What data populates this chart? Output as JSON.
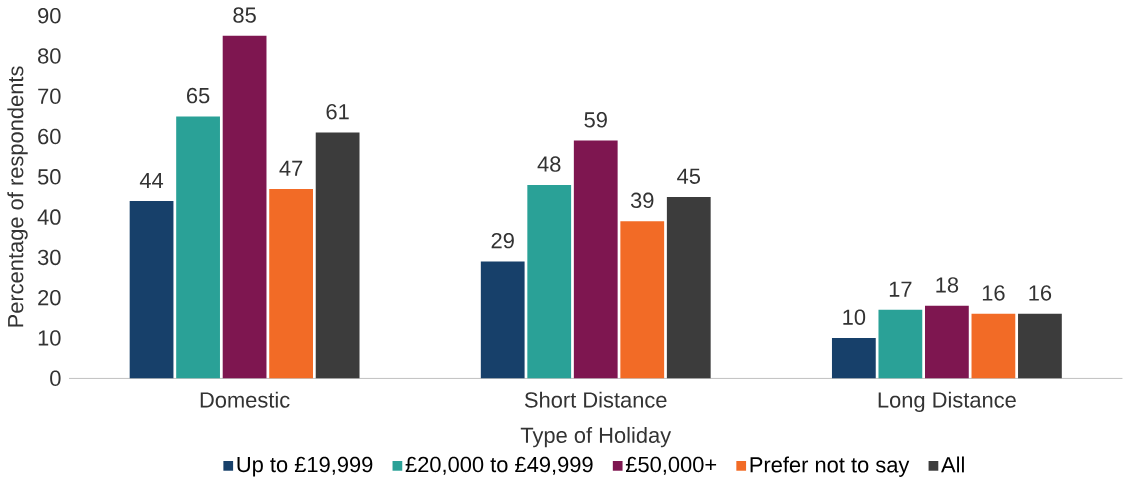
{
  "chart_data": {
    "type": "bar",
    "xlabel": "Type of Holiday",
    "ylabel": "Percentage of respondents",
    "categories": [
      "Domestic",
      "Short Distance",
      "Long Distance"
    ],
    "series": [
      {
        "name": "Up to £19,999",
        "color": "#17406a",
        "values": [
          44,
          29,
          10
        ]
      },
      {
        "name": "£20,000 to £49,999",
        "color": "#2aa197",
        "values": [
          65,
          48,
          17
        ]
      },
      {
        "name": "£50,000+",
        "color": "#7e1650",
        "values": [
          85,
          59,
          18
        ]
      },
      {
        "name": "Prefer not to say",
        "color": "#f26b26",
        "values": [
          47,
          39,
          16
        ]
      },
      {
        "name": "All",
        "color": "#3c3c3c",
        "values": [
          61,
          45,
          16
        ]
      }
    ],
    "ylim": [
      0,
      90
    ],
    "yticks": [
      0,
      10,
      20,
      30,
      40,
      50,
      60,
      70,
      80,
      90
    ],
    "data_labels": true,
    "legend": "bottom"
  }
}
